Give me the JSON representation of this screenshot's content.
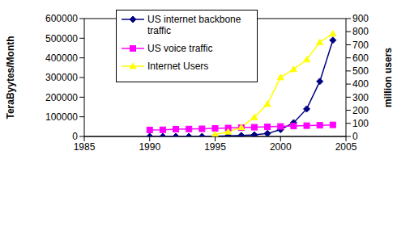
{
  "chart_data": {
    "type": "line",
    "x": [
      1990,
      1991,
      1992,
      1993,
      1994,
      1995,
      1996,
      1997,
      1998,
      1999,
      2000,
      2001,
      2002,
      2003,
      2004
    ],
    "xlim": [
      1985,
      2005
    ],
    "xticks": [
      1985,
      1990,
      1995,
      2000,
      2005
    ],
    "ylabel": "TeraByytes/Month",
    "ylim": [
      0,
      600000
    ],
    "yticks": [
      0,
      100000,
      200000,
      300000,
      400000,
      500000,
      600000
    ],
    "y2label": "million users",
    "y2lim": [
      0,
      900
    ],
    "y2ticks": [
      0,
      100,
      200,
      300,
      400,
      500,
      600,
      700,
      800,
      900
    ],
    "grid": true,
    "legend": "upper left",
    "series": [
      {
        "name": "US internet backbone traffic",
        "color": "#000080",
        "marker": "diamond",
        "values": [
          1,
          2,
          4,
          8,
          16,
          1500,
          3000,
          5000,
          8000,
          15000,
          35000,
          70000,
          140000,
          280000,
          490000
        ]
      },
      {
        "name": "US voice traffic",
        "color": "#ff00ff",
        "marker": "square",
        "values": [
          33000,
          34000,
          37000,
          38000,
          39000,
          41000,
          43000,
          45000,
          47000,
          49000,
          51000,
          53000,
          55000,
          57000,
          59000
        ]
      },
      {
        "name": "Internet Users",
        "color": "#ffff00",
        "marker": "triangle",
        "axis": "y2",
        "values": [
          null,
          null,
          null,
          null,
          null,
          16,
          36,
          70,
          147,
          248,
          451,
          513,
          587,
          719,
          785
        ]
      }
    ]
  }
}
